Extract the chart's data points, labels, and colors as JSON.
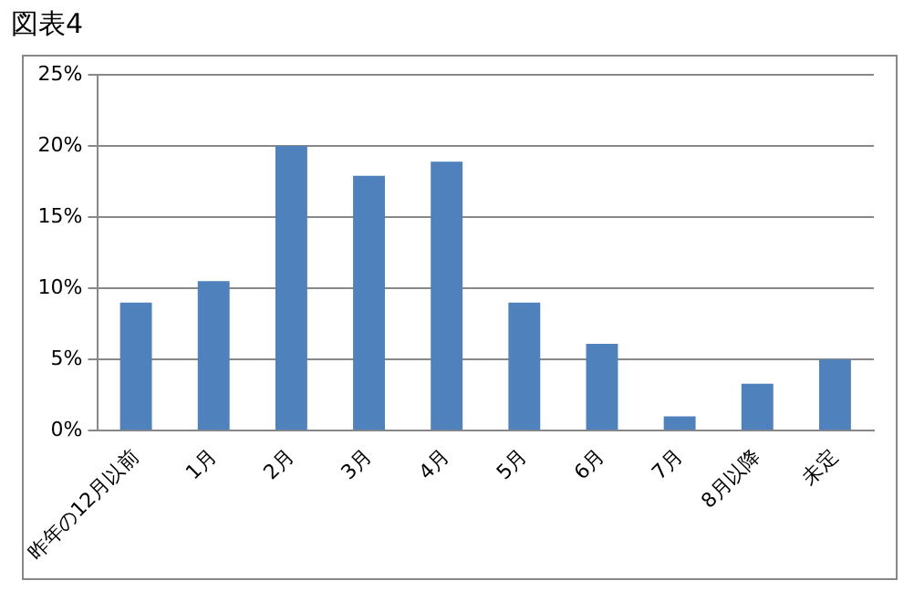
{
  "chart_data": {
    "type": "bar",
    "title": "図表4",
    "categories": [
      "昨年の12月以前",
      "1月",
      "2月",
      "3月",
      "4月",
      "5月",
      "6月",
      "7月",
      "8月以降",
      "未定"
    ],
    "values": [
      9,
      10.5,
      20,
      17.9,
      18.9,
      9,
      6.1,
      1,
      3.3,
      5
    ],
    "color": "#4f81bd",
    "ylim": [
      0,
      25
    ],
    "yticks": [
      {
        "value": 0,
        "label": "0%"
      },
      {
        "value": 5,
        "label": "5%"
      },
      {
        "value": 10,
        "label": "10%"
      },
      {
        "value": 15,
        "label": "15%"
      },
      {
        "value": 20,
        "label": "20%"
      },
      {
        "value": 25,
        "label": "25%"
      }
    ],
    "grid": "y",
    "legend": false
  }
}
